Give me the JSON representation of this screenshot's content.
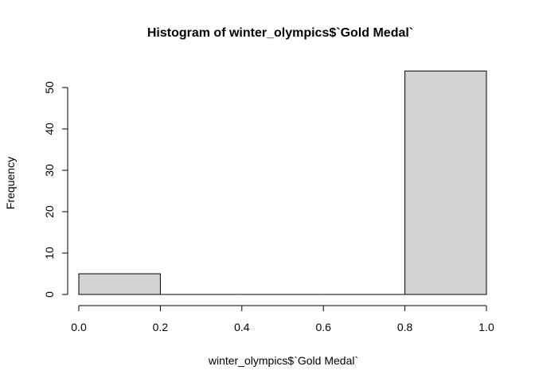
{
  "chart_data": {
    "type": "bar",
    "title": "Histogram of winter_olympics$`Gold Medal`",
    "xlabel": "winter_olympics$`Gold Medal`",
    "ylabel": "Frequency",
    "bins": [
      {
        "x0": 0.0,
        "x1": 0.2,
        "count": 5
      },
      {
        "x0": 0.2,
        "x1": 0.4,
        "count": 0
      },
      {
        "x0": 0.4,
        "x1": 0.6,
        "count": 0
      },
      {
        "x0": 0.6,
        "x1": 0.8,
        "count": 0
      },
      {
        "x0": 0.8,
        "x1": 1.0,
        "count": 54
      }
    ],
    "xlim": [
      0.0,
      1.0
    ],
    "ylim": [
      0,
      54
    ],
    "x_ticks": [
      "0.0",
      "0.2",
      "0.4",
      "0.6",
      "0.8",
      "1.0"
    ],
    "y_ticks": [
      "0",
      "10",
      "20",
      "30",
      "40",
      "50"
    ],
    "bar_color": "#d3d3d3",
    "grid": false,
    "legend": "none"
  }
}
